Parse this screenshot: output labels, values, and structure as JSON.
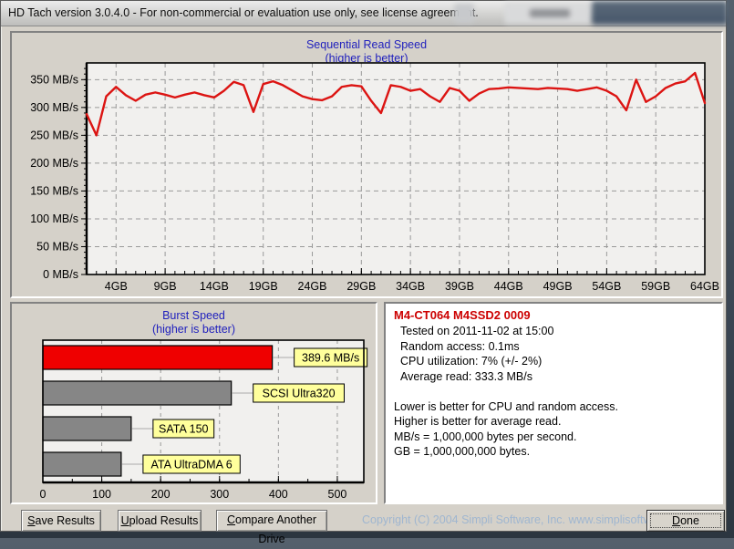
{
  "window": {
    "title": "HD Tach version 3.0.4.0  - For non-commercial or evaluation use only, see license agreement."
  },
  "colors": {
    "line_red": "#dc1412",
    "burst_bar_red": "#ef0000",
    "burst_bar_gray": "#868686",
    "label_box_yellow": "#ffff9c",
    "chart_title_blue": "#2121bd",
    "info_title_red": "#cc0000",
    "plot_background": "#f1f0ee",
    "grid_gray": "#999999",
    "copyright_blue": "#9fb6d0"
  },
  "info_panel": {
    "title": "M4-CT064 M4SSD2 0009",
    "lines": [
      "Tested on 2011-11-02 at 15:00",
      "Random access: 0.1ms",
      "CPU utilization: 7% (+/- 2%)",
      "Average read: 333.3 MB/s",
      "",
      "Lower is better for CPU and random access.",
      "Higher is better for average read.",
      "MB/s = 1,000,000 bytes per second.",
      "GB = 1,000,000,000 bytes."
    ]
  },
  "buttons": {
    "save": "Save Results",
    "upload": "Upload Results",
    "compare": "Compare Another Drive",
    "done": "Done"
  },
  "footer": {
    "copyright": "Copyright (C) 2004 Simpli Software, Inc.  www.simplisoftware.com"
  },
  "chart_data": [
    {
      "type": "line",
      "title": "Sequential Read Speed",
      "subtitle": "(higher is better)",
      "series_name": "Sequential read speed (MB/s)",
      "x_unit": "GB",
      "x_start_gb": 1,
      "x_end_gb": 64,
      "values": [
        288,
        250,
        320,
        337,
        322,
        312,
        323,
        327,
        323,
        318,
        323,
        327,
        322,
        318,
        330,
        346,
        340,
        292,
        342,
        347,
        340,
        330,
        320,
        315,
        313,
        320,
        337,
        340,
        338,
        312,
        290,
        340,
        337,
        330,
        333,
        320,
        310,
        335,
        330,
        312,
        325,
        333,
        334,
        336,
        335,
        334,
        333,
        335,
        334,
        333,
        330,
        333,
        336,
        330,
        320,
        295,
        350,
        310,
        320,
        335,
        343,
        347,
        362,
        308
      ],
      "ylim": [
        0,
        380
      ],
      "ytick_values": [
        0,
        50,
        100,
        150,
        200,
        250,
        300,
        350
      ],
      "ytick_labels": [
        "0 MB/s",
        "50 MB/s",
        "100 MB/s",
        "150 MB/s",
        "200 MB/s",
        "250 MB/s",
        "300 MB/s",
        "350 MB/s"
      ],
      "xtick_values": [
        4,
        9,
        14,
        19,
        24,
        29,
        34,
        39,
        44,
        49,
        54,
        59,
        64
      ],
      "xtick_labels": [
        "4GB",
        "9GB",
        "14GB",
        "19GB",
        "24GB",
        "29GB",
        "34GB",
        "39GB",
        "44GB",
        "49GB",
        "54GB",
        "59GB",
        "64GB"
      ],
      "grid": "dashed"
    },
    {
      "type": "bar",
      "orientation": "horizontal",
      "title": "Burst Speed",
      "subtitle": "(higher is better)",
      "bars": [
        {
          "label": "389.6 MB/s",
          "value": 389.6,
          "color": "#ef0000"
        },
        {
          "label": "SCSI Ultra320",
          "value": 320,
          "color": "#868686"
        },
        {
          "label": "SATA 150",
          "value": 150,
          "color": "#868686"
        },
        {
          "label": "ATA UltraDMA 6",
          "value": 133,
          "color": "#868686"
        }
      ],
      "xlim": [
        0,
        545
      ],
      "xtick_values": [
        0,
        100,
        200,
        300,
        400,
        500
      ],
      "xtick_labels": [
        "0",
        "100",
        "200",
        "300",
        "400",
        "500"
      ],
      "grid": "dashed"
    }
  ]
}
